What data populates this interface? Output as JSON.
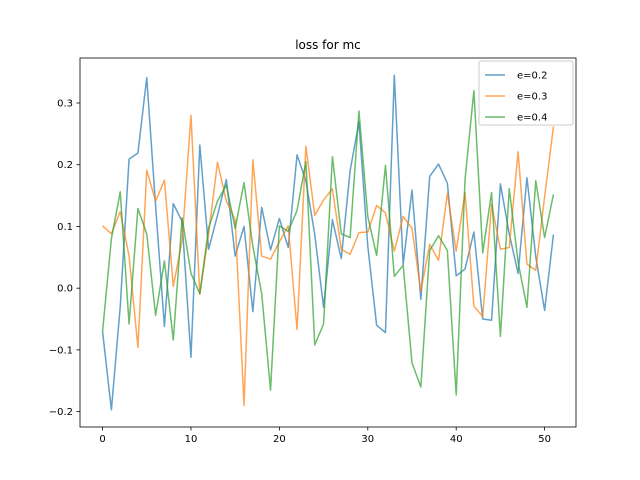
{
  "chart_data": {
    "type": "line",
    "title": "loss for mc",
    "xlabel": "",
    "ylabel": "",
    "xlim": [
      -2.55,
      53.55
    ],
    "ylim": [
      -0.2249,
      0.3729
    ],
    "xticks": [
      0,
      10,
      20,
      30,
      40,
      50
    ],
    "yticks": [
      -0.2,
      -0.1,
      0.0,
      0.1,
      0.2,
      0.3
    ],
    "ytick_labels": [
      "−0.2",
      "−0.1",
      "0.0",
      "0.1",
      "0.2",
      "0.3"
    ],
    "grid": false,
    "legend_position": "top-right",
    "x": [
      0,
      1,
      2,
      3,
      4,
      5,
      6,
      7,
      8,
      9,
      10,
      11,
      12,
      13,
      14,
      15,
      16,
      17,
      18,
      19,
      20,
      21,
      22,
      23,
      24,
      25,
      26,
      27,
      28,
      29,
      30,
      31,
      32,
      33,
      34,
      35,
      36,
      37,
      38,
      39,
      40,
      41,
      42,
      43,
      44,
      45,
      46,
      47,
      48,
      49,
      50,
      51
    ],
    "series": [
      {
        "name": "e=0.2",
        "color": "#1f77b4",
        "values": [
          -0.07,
          -0.197,
          -0.03,
          0.209,
          0.219,
          0.341,
          0.133,
          -0.062,
          0.137,
          0.108,
          -0.112,
          0.232,
          0.063,
          0.118,
          0.176,
          0.052,
          0.1,
          -0.038,
          0.131,
          0.062,
          0.113,
          0.066,
          0.216,
          0.174,
          0.087,
          -0.031,
          0.111,
          0.048,
          0.19,
          0.269,
          0.068,
          -0.06,
          -0.072,
          0.345,
          0.038,
          0.159,
          -0.018,
          0.181,
          0.201,
          0.17,
          0.02,
          0.031,
          0.091,
          -0.05,
          -0.052,
          0.169,
          0.088,
          0.024,
          0.179,
          0.051,
          -0.036,
          0.087
        ]
      },
      {
        "name": "e=0.3",
        "color": "#ff7f0e",
        "values": [
          0.101,
          0.088,
          0.124,
          0.052,
          -0.096,
          0.191,
          0.141,
          0.175,
          0.003,
          0.077,
          0.28,
          -0.01,
          0.088,
          0.204,
          0.141,
          0.111,
          -0.19,
          0.208,
          0.052,
          0.047,
          0.075,
          0.101,
          -0.067,
          0.23,
          0.118,
          0.143,
          0.161,
          0.063,
          0.055,
          0.09,
          0.091,
          0.134,
          0.122,
          0.06,
          0.116,
          0.097,
          -0.005,
          0.071,
          0.045,
          0.154,
          0.06,
          0.155,
          -0.029,
          -0.046,
          0.136,
          0.063,
          0.066,
          0.221,
          0.039,
          0.029,
          0.148,
          0.262
        ]
      },
      {
        "name": "e=0.4",
        "color": "#2ca02c",
        "values": [
          -0.07,
          0.08,
          0.156,
          -0.058,
          0.129,
          0.088,
          -0.044,
          0.044,
          -0.084,
          0.114,
          0.024,
          -0.009,
          0.098,
          0.141,
          0.167,
          0.097,
          0.171,
          0.068,
          -0.009,
          -0.165,
          0.101,
          0.092,
          0.126,
          0.205,
          -0.092,
          -0.058,
          0.213,
          0.088,
          0.082,
          0.287,
          0.116,
          0.053,
          0.199,
          0.019,
          0.037,
          -0.121,
          -0.16,
          0.061,
          0.085,
          0.061,
          -0.173,
          0.176,
          0.32,
          0.057,
          0.155,
          -0.078,
          0.161,
          0.042,
          -0.031,
          0.174,
          0.082,
          0.152
        ]
      }
    ]
  }
}
